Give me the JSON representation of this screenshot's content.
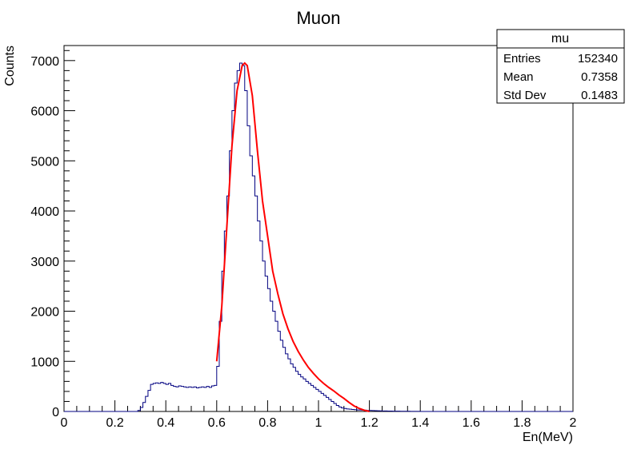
{
  "chart_data": {
    "type": "histogram",
    "title": "Muon",
    "xlabel": "En(MeV)",
    "ylabel": "Counts",
    "xlim": [
      0,
      2
    ],
    "ylim": [
      0,
      7300
    ],
    "x_ticks": [
      "0",
      "0.2",
      "0.4",
      "0.6",
      "0.8",
      "1",
      "1.2",
      "1.4",
      "1.6",
      "1.8",
      "2"
    ],
    "y_ticks": [
      "0",
      "1000",
      "2000",
      "3000",
      "4000",
      "5000",
      "6000",
      "7000"
    ],
    "grid": false,
    "colors": {
      "histogram": "#000080",
      "fit": "#ff0000"
    },
    "histogram": {
      "bin_width": 0.01,
      "values": [
        0,
        0,
        0,
        0,
        0,
        0,
        0,
        0,
        0,
        0,
        0,
        0,
        0,
        0,
        0,
        0,
        0,
        0,
        0,
        0,
        0,
        0,
        0,
        0,
        0,
        0,
        0,
        0,
        0,
        20,
        80,
        180,
        300,
        420,
        540,
        560,
        570,
        560,
        580,
        560,
        540,
        560,
        520,
        500,
        490,
        510,
        500,
        490,
        480,
        490,
        480,
        490,
        470,
        480,
        490,
        480,
        500,
        480,
        510,
        520,
        900,
        1800,
        2800,
        3600,
        4300,
        5200,
        6000,
        6550,
        6800,
        6950,
        6900,
        6400,
        5700,
        5100,
        4700,
        4300,
        3800,
        3400,
        3000,
        2700,
        2450,
        2200,
        2000,
        1800,
        1600,
        1420,
        1280,
        1150,
        1050,
        950,
        880,
        800,
        740,
        690,
        650,
        600,
        560,
        520,
        480,
        440,
        400,
        360,
        320,
        280,
        240,
        200,
        160,
        120,
        90,
        70,
        60,
        50,
        45,
        40,
        35,
        30,
        30,
        25,
        25,
        20,
        20,
        18,
        16,
        14,
        12,
        10,
        10,
        8,
        8,
        6,
        5,
        5,
        4,
        4,
        3,
        3,
        2,
        2,
        2,
        1,
        0,
        0,
        0,
        0,
        0,
        0,
        0,
        0,
        0,
        0,
        0,
        0,
        0,
        0,
        0,
        0,
        0,
        0,
        0,
        0,
        0,
        0,
        0,
        0,
        0,
        0,
        0,
        0,
        0,
        0,
        0,
        0,
        0,
        0,
        0,
        0,
        0,
        0,
        0,
        0,
        0,
        0,
        0,
        0,
        0,
        0,
        0,
        0,
        0,
        0,
        0,
        0,
        0,
        0,
        0,
        0,
        0,
        0,
        0,
        0
      ]
    },
    "fit": {
      "x": [
        0.6,
        0.62,
        0.64,
        0.66,
        0.68,
        0.7,
        0.71,
        0.72,
        0.74,
        0.76,
        0.78,
        0.8,
        0.82,
        0.84,
        0.86,
        0.88,
        0.9,
        0.92,
        0.94,
        0.96,
        0.98,
        1.0,
        1.02,
        1.04,
        1.06,
        1.08,
        1.1,
        1.12,
        1.14,
        1.16,
        1.18,
        1.2
      ],
      "y": [
        1000,
        2100,
        3700,
        5300,
        6400,
        6900,
        6950,
        6900,
        6300,
        5200,
        4200,
        3500,
        2800,
        2350,
        1950,
        1650,
        1400,
        1200,
        1030,
        880,
        760,
        650,
        560,
        480,
        410,
        330,
        260,
        180,
        110,
        60,
        25,
        0
      ]
    },
    "stats_box": {
      "title": "mu",
      "rows": [
        {
          "label": "Entries",
          "value": "152340"
        },
        {
          "label": "Mean",
          "value": "0.7358"
        },
        {
          "label": "Std Dev",
          "value": "0.1483"
        }
      ]
    }
  }
}
